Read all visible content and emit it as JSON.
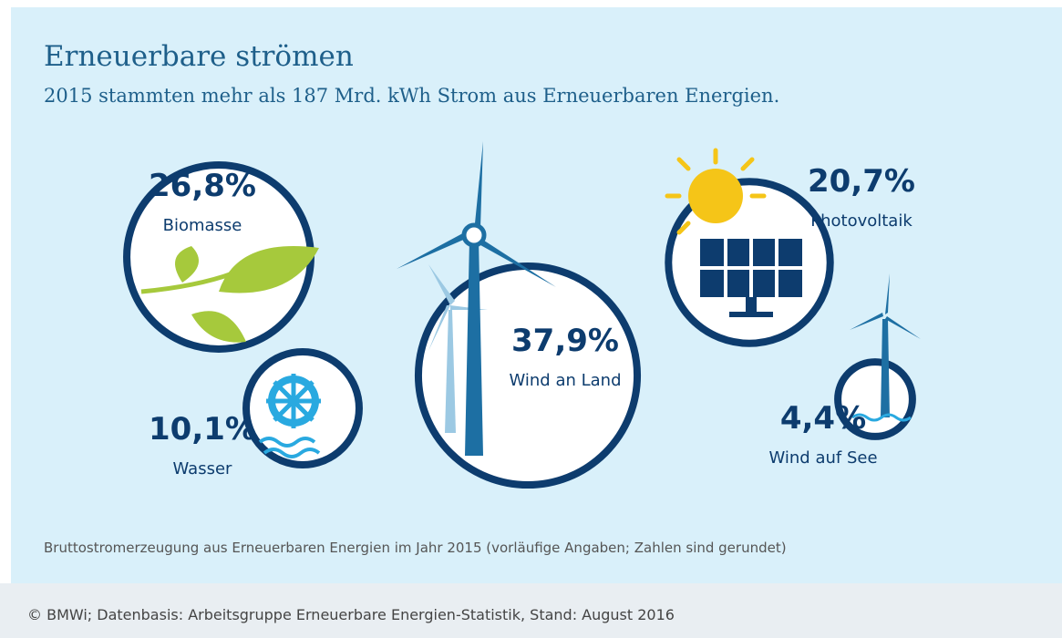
{
  "chart_data": {
    "type": "bubble",
    "title": "Erneuerbare strömen",
    "subtitle": "2015 stammten mehr als 187 Mrd. kWh Strom aus Erneuerbaren Energien.",
    "categories": [
      "Biomasse",
      "Wind an Land",
      "Photovoltaik",
      "Wasser",
      "Wind auf See"
    ],
    "values": [
      26.8,
      37.9,
      20.7,
      10.1,
      4.4
    ],
    "value_labels": [
      "26,8%",
      "37,9%",
      "20,7%",
      "10,1%",
      "4,4%"
    ],
    "caption": "Bruttostromerzeugung aus Erneuerbaren Energien im Jahr 2015 (vorläufige Angaben; Zahlen sind gerundet)",
    "source": "© BMWi; Datenbasis: Arbeitsgruppe Erneuerbare Energien-Statistik, Stand: August 2016"
  }
}
